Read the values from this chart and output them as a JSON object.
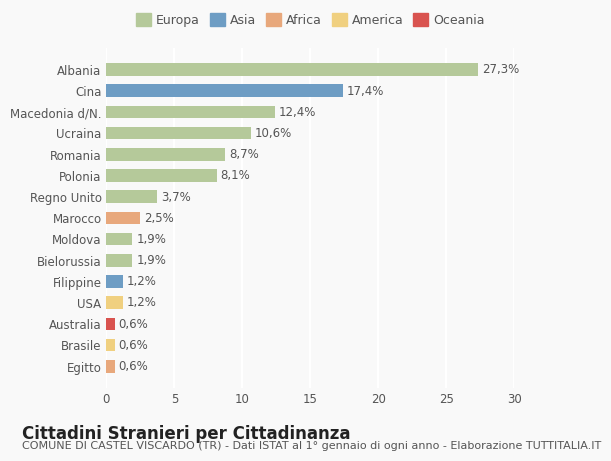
{
  "categories": [
    "Albania",
    "Cina",
    "Macedonia d/N.",
    "Ucraina",
    "Romania",
    "Polonia",
    "Regno Unito",
    "Marocco",
    "Moldova",
    "Bielorussia",
    "Filippine",
    "USA",
    "Australia",
    "Brasile",
    "Egitto"
  ],
  "values": [
    27.3,
    17.4,
    12.4,
    10.6,
    8.7,
    8.1,
    3.7,
    2.5,
    1.9,
    1.9,
    1.2,
    1.2,
    0.6,
    0.6,
    0.6
  ],
  "labels": [
    "27,3%",
    "17,4%",
    "12,4%",
    "10,6%",
    "8,7%",
    "8,1%",
    "3,7%",
    "2,5%",
    "1,9%",
    "1,9%",
    "1,2%",
    "1,2%",
    "0,6%",
    "0,6%",
    "0,6%"
  ],
  "continents": [
    "Europa",
    "Asia",
    "Europa",
    "Europa",
    "Europa",
    "Europa",
    "Europa",
    "Africa",
    "Europa",
    "Europa",
    "Asia",
    "America",
    "Oceania",
    "America",
    "Africa"
  ],
  "continent_colors": {
    "Europa": "#b5c99a",
    "Asia": "#6e9dc4",
    "Africa": "#e8a87c",
    "America": "#f0d080",
    "Oceania": "#d9534f"
  },
  "legend_order": [
    "Europa",
    "Asia",
    "Africa",
    "America",
    "Oceania"
  ],
  "legend_colors": {
    "Europa": "#b5c99a",
    "Asia": "#6e9dc4",
    "Africa": "#e8a87c",
    "America": "#f0d080",
    "Oceania": "#d9534f"
  },
  "xlim": [
    0,
    30
  ],
  "xticks": [
    0,
    5,
    10,
    15,
    20,
    25,
    30
  ],
  "title": "Cittadini Stranieri per Cittadinanza",
  "subtitle": "COMUNE DI CASTEL VISCARDO (TR) - Dati ISTAT al 1° gennaio di ogni anno - Elaborazione TUTTITALIA.IT",
  "background_color": "#f9f9f9",
  "grid_color": "#ffffff",
  "bar_height": 0.6,
  "title_fontsize": 12,
  "subtitle_fontsize": 8,
  "label_fontsize": 8.5,
  "tick_fontsize": 8.5
}
